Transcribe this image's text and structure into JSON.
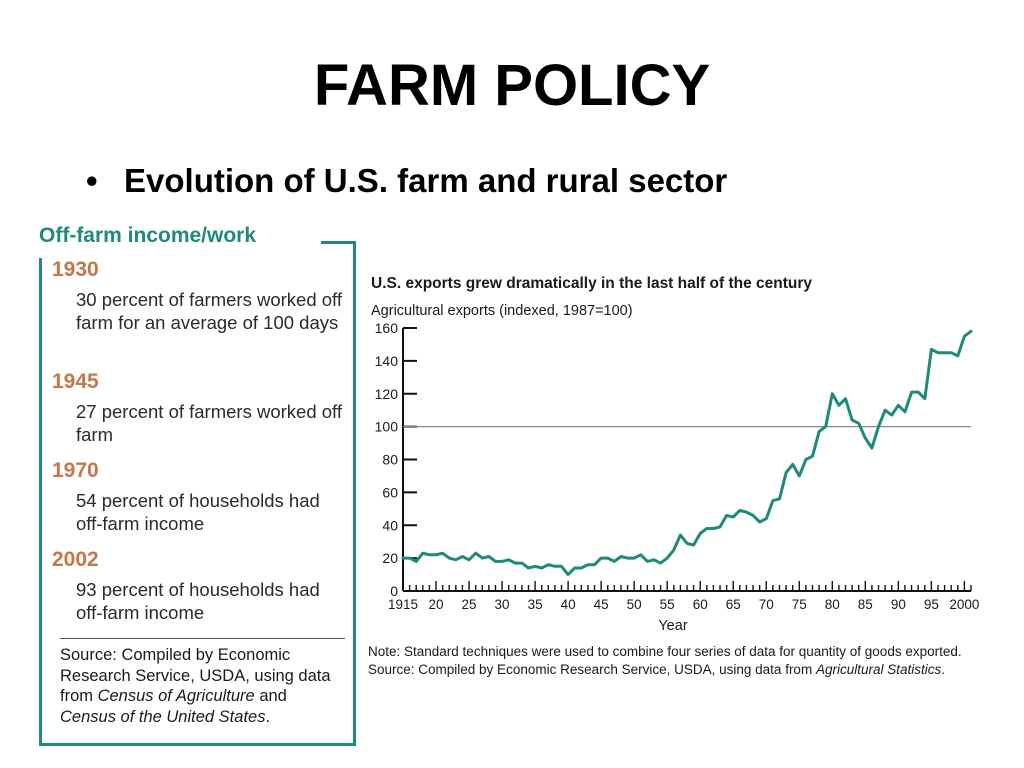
{
  "slide": {
    "title": "FARM POLICY",
    "bullet_symbol": "•",
    "bullet_text": "Evolution of U.S. farm and rural sector"
  },
  "panel": {
    "heading": "Off-farm income/work",
    "entries": [
      {
        "year": "1930",
        "text": "30 percent of farmers worked off farm for an average of 100 days"
      },
      {
        "year": "1945",
        "text": "27 percent of farmers worked off farm"
      },
      {
        "year": "1970",
        "text": "54 percent of households had off-farm income"
      },
      {
        "year": "2002",
        "text": "93 percent of households had off-farm income"
      }
    ],
    "source_prefix": "Source: Compiled by Economic Research Service, USDA, using data from ",
    "source_italic_1": "Census of Agriculture",
    "source_middle": " and ",
    "source_italic_2": "Census of the United States",
    "source_suffix": "."
  },
  "colors": {
    "accent_teal": "#1f8a7a",
    "year_orange": "#c2784a",
    "line_series": "#1f8a7a"
  },
  "chart_data": {
    "type": "line",
    "title": "U.S. exports grew dramatically in the last half of the century",
    "ylabel": "Agricultural exports (indexed, 1987=100)",
    "xlabel": "Year",
    "ylim": [
      0,
      160
    ],
    "xlim": [
      1915,
      2001
    ],
    "yticks": [
      0,
      20,
      40,
      60,
      80,
      100,
      120,
      140,
      160
    ],
    "xtick_values": [
      1915,
      1920,
      1925,
      1930,
      1935,
      1940,
      1945,
      1950,
      1955,
      1960,
      1965,
      1970,
      1975,
      1980,
      1985,
      1990,
      1995,
      2000
    ],
    "xtick_labels": [
      "1915",
      "20",
      "25",
      "30",
      "35",
      "40",
      "45",
      "50",
      "55",
      "60",
      "65",
      "70",
      "75",
      "80",
      "85",
      "90",
      "95",
      "2000"
    ],
    "reference_line": 100,
    "grid": false,
    "series": [
      {
        "x": [
          1915,
          1916,
          1917,
          1918,
          1919,
          1920,
          1921,
          1922,
          1923,
          1924,
          1925,
          1926,
          1927,
          1928,
          1929,
          1930,
          1931,
          1932,
          1933,
          1934,
          1935,
          1936,
          1937,
          1938,
          1939,
          1940,
          1941,
          1942,
          1943,
          1944,
          1945,
          1946,
          1947,
          1948,
          1949,
          1950,
          1951,
          1952,
          1953,
          1954,
          1955,
          1956,
          1957,
          1958,
          1959,
          1960,
          1961,
          1962,
          1963,
          1964,
          1965,
          1966,
          1967,
          1968,
          1969,
          1970,
          1971,
          1972,
          1973,
          1974,
          1975,
          1976,
          1977,
          1978,
          1979,
          1980,
          1981,
          1982,
          1983,
          1984,
          1985,
          1986,
          1987,
          1988,
          1989,
          1990,
          1991,
          1992,
          1993,
          1994,
          1995,
          1996,
          1997,
          1998,
          1999,
          2000,
          2001
        ],
        "values": [
          20,
          20,
          18,
          23,
          22,
          22,
          23,
          20,
          19,
          21,
          19,
          23,
          20,
          21,
          18,
          18,
          19,
          17,
          17,
          14,
          15,
          14,
          16,
          15,
          15,
          10,
          14,
          14,
          16,
          16,
          20,
          20,
          18,
          21,
          20,
          20,
          22,
          18,
          19,
          17,
          20,
          25,
          34,
          29,
          28,
          35,
          38,
          38,
          39,
          46,
          45,
          49,
          48,
          46,
          42,
          44,
          55,
          56,
          72,
          77,
          70,
          80,
          82,
          97,
          100,
          120,
          113,
          117,
          104,
          102,
          93,
          87,
          100,
          110,
          107,
          113,
          109,
          121,
          121,
          117,
          147,
          145,
          145,
          145,
          143,
          155,
          158
        ]
      }
    ]
  },
  "note": {
    "line1": "Note: Standard techniques were used to combine four series of data for quantity of goods exported.",
    "source_prefix": "Source:  Compiled by Economic Research Service, USDA, using data from ",
    "source_italic": "Agricultural Statistics",
    "source_suffix": "."
  }
}
